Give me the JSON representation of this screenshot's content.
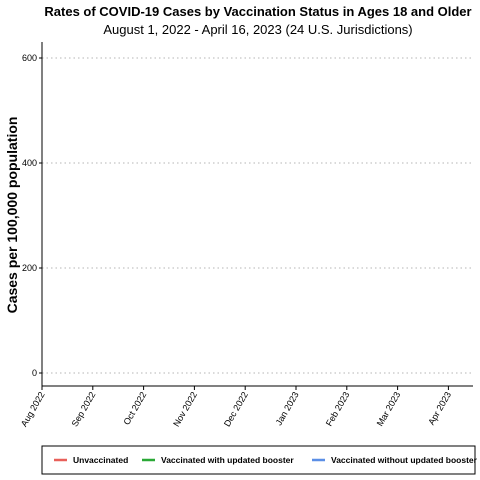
{
  "chart_data": {
    "type": "line",
    "title": "Rates of COVID-19 Cases by Vaccination Status in Ages 18 and Older",
    "subtitle": "August 1, 2022 - April 16, 2023 (24 U.S. Jurisdictions)",
    "ylabel": "Cases per 100,000 population",
    "xlabel": "",
    "ylim": [
      0,
      630
    ],
    "yticks": [
      0,
      200,
      400,
      600
    ],
    "x_ticks": [
      "Aug 2022",
      "Sep 2022",
      "Oct 2022",
      "Nov 2022",
      "Dec 2022",
      "Jan 2023",
      "Feb 2023",
      "Mar 2023",
      "Apr 2023"
    ],
    "grid": "horizontal-dotted",
    "legend_position": "bottom",
    "series": [
      {
        "name": "Unvaccinated",
        "color": "#e8605a",
        "values": []
      },
      {
        "name": "Vaccinated with updated booster",
        "color": "#2aa836",
        "values": []
      },
      {
        "name": "Vaccinated without updated booster",
        "color": "#5b8fe6",
        "values": []
      }
    ]
  }
}
